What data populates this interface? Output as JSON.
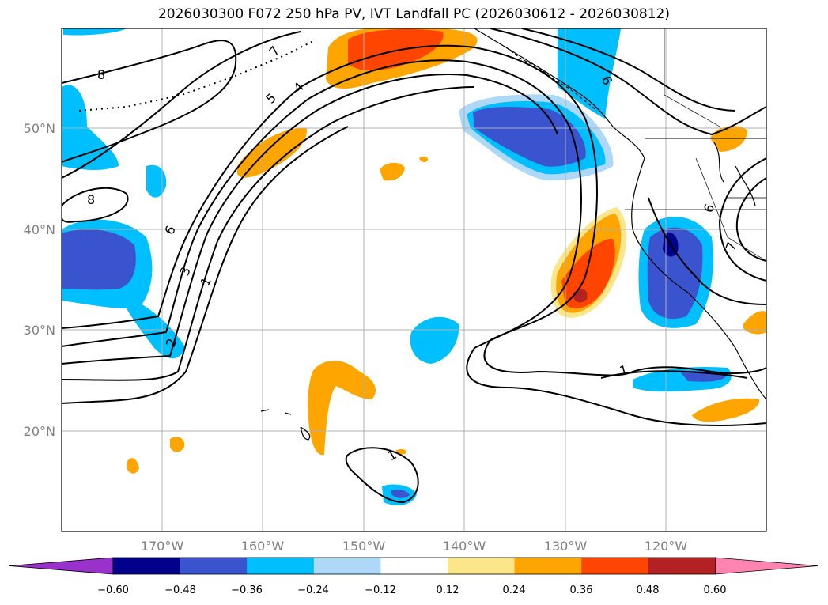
{
  "title": "2026030300 F072 250 hPa PV, IVT Landfall PC (2026030612 - 2026030812)",
  "map": {
    "lat_labels": [
      "50°N",
      "40°N",
      "30°N",
      "20°N"
    ],
    "lon_labels": [
      "170°W",
      "160°W",
      "150°W",
      "140°W",
      "130°W",
      "120°W"
    ],
    "contour_labels": [
      "8",
      "8",
      "7",
      "5",
      "4",
      "6",
      "3",
      "1",
      "2",
      "6",
      "6",
      "7",
      "1",
      "1"
    ]
  },
  "colorbar": {
    "ticks": [
      "−0.60",
      "−0.48",
      "−0.36",
      "−0.24",
      "−0.12",
      "0.12",
      "0.24",
      "0.36",
      "0.48",
      "0.60"
    ],
    "colors": [
      "#9932cc",
      "#00008b",
      "#3a54d0",
      "#00bfff",
      "#add8f8",
      "#ffffff",
      "#fce68a",
      "#ffa500",
      "#ff4500",
      "#b22222",
      "#ff85b0"
    ]
  },
  "fill_colors": {
    "neg_light": "#add8f8",
    "neg_mid": "#00bfff",
    "neg_strong": "#3a54d0",
    "neg_max": "#00008b",
    "pos_light": "#fce68a",
    "pos_mid": "#ffa500",
    "pos_strong": "#ff4500",
    "pos_max": "#b22222"
  }
}
